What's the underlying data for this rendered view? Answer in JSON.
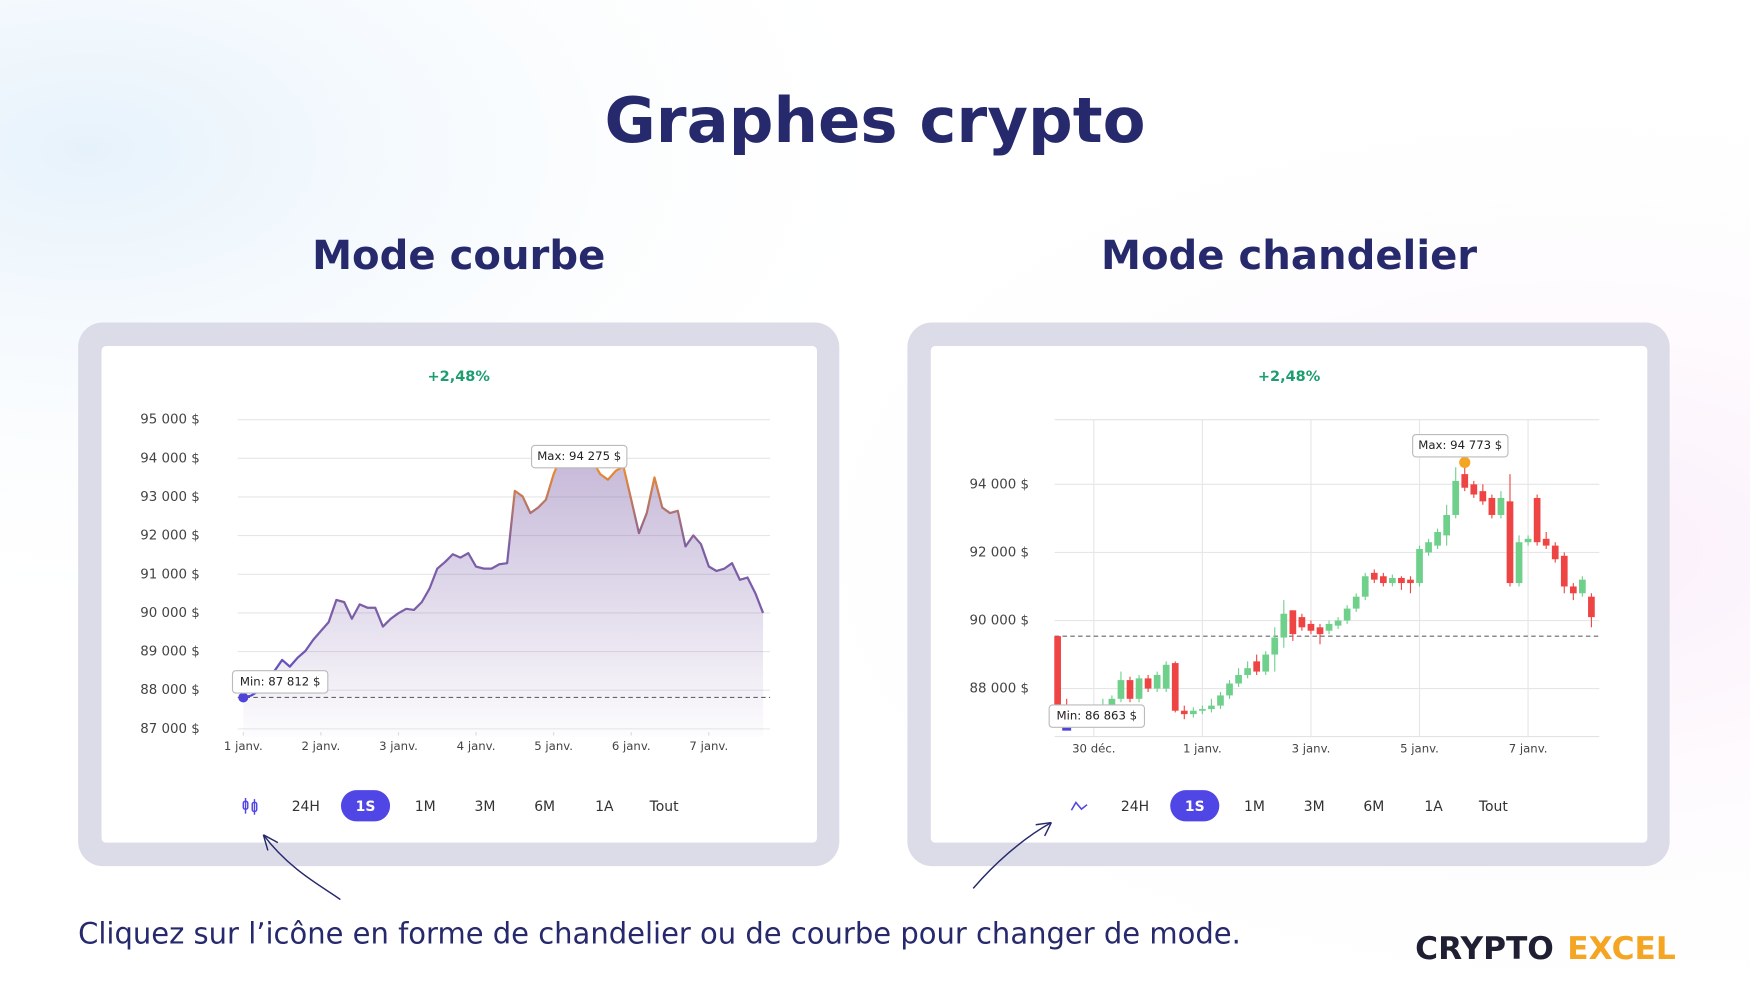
{
  "title": "Graphes crypto",
  "panels": [
    {
      "heading": "Mode courbe",
      "periods": [
        "24H",
        "1S",
        "1M",
        "3M",
        "6M",
        "1A",
        "Tout"
      ],
      "active_index": 1
    },
    {
      "heading": "Mode chandelier",
      "periods": [
        "24H",
        "1S",
        "1M",
        "3M",
        "6M",
        "1A",
        "Tout"
      ],
      "active_index": 1
    }
  ],
  "footer": "Cliquez sur l’icône en forme de chandelier ou de courbe pour changer de mode.",
  "logo": {
    "left": "CRYPTO",
    "right": "EXCEL"
  },
  "chart_data": [
    {
      "type": "line",
      "change": "+2,48%",
      "x": [
        0,
        0.1,
        0.2,
        0.3,
        0.4,
        0.5,
        0.6,
        0.7,
        0.8,
        0.9,
        1,
        1.1,
        1.2,
        1.3,
        1.4,
        1.5,
        1.6,
        1.7,
        1.8,
        1.9,
        2,
        2.1,
        2.2,
        2.3,
        2.4,
        2.5,
        2.6,
        2.7,
        2.8,
        2.9,
        3,
        3.1,
        3.2,
        3.3,
        3.4,
        3.5,
        3.6,
        3.7,
        3.8,
        3.9,
        4,
        4.1,
        4.2,
        4.3,
        4.4,
        4.5,
        4.6,
        4.7,
        4.8,
        4.9,
        5,
        5.1,
        5.2,
        5.3,
        5.4,
        5.5,
        5.6,
        5.7,
        5.8,
        5.9,
        6,
        6.1,
        6.2,
        6.3,
        6.4,
        6.5,
        6.6,
        6.7
      ],
      "xlim": [
        -0.072,
        6.79
      ],
      "xticks": [
        {
          "value": 0,
          "label": "1 janv."
        },
        {
          "value": 1,
          "label": "2 janv."
        },
        {
          "value": 2,
          "label": "3 janv."
        },
        {
          "value": 3,
          "label": "4 janv."
        },
        {
          "value": 4,
          "label": "5 janv."
        },
        {
          "value": 5,
          "label": "6 janv."
        },
        {
          "value": 6,
          "label": "7 janv."
        }
      ],
      "ylim": [
        86800,
        95000
      ],
      "yticks": [
        {
          "value": 87000,
          "label": "87 000 $"
        },
        {
          "value": 88000,
          "label": "88 000 $"
        },
        {
          "value": 89000,
          "label": "89 000 $"
        },
        {
          "value": 90000,
          "label": "90 000 $"
        },
        {
          "value": 91000,
          "label": "91 000 $"
        },
        {
          "value": 92000,
          "label": "92 000 $"
        },
        {
          "value": 93000,
          "label": "93 000 $"
        },
        {
          "value": 94000,
          "label": "94 000 $"
        },
        {
          "value": 95000,
          "label": "95 000 $"
        }
      ],
      "grid": true,
      "series": [
        {
          "colors": [
            "#f28c28",
            "#7b5ea7",
            "#4e45d8"
          ],
          "values": [
            87812,
            87862,
            87978,
            88180,
            88496,
            88784,
            88610,
            88840,
            89014,
            89302,
            89532,
            89762,
            90338,
            90280,
            89850,
            90222,
            90136,
            90136,
            89647,
            89850,
            89993,
            90107,
            90078,
            90280,
            90626,
            91144,
            91316,
            91518,
            91431,
            91546,
            91201,
            91144,
            91144,
            91259,
            91287,
            93158,
            93014,
            92582,
            92726,
            92928,
            93590,
            94080,
            94275,
            94252,
            94022,
            93935,
            93590,
            93446,
            93676,
            93791,
            92928,
            92064,
            92582,
            93503,
            92726,
            92582,
            92640,
            91719,
            92006,
            91777,
            91201,
            91086,
            91144,
            91287,
            90856,
            90914,
            90510,
            90000
          ]
        }
      ],
      "max_label": "Max: 94 275 $",
      "min_label": "Min: 87 812 $",
      "ref_line": 87812
    },
    {
      "type": "candlestick",
      "change": "+2,48%",
      "x": [
        -16,
        -12,
        -8,
        -4,
        0,
        4,
        8,
        12,
        16,
        20,
        24,
        28,
        32,
        36,
        40,
        44,
        48,
        52,
        56,
        60,
        64,
        68,
        72,
        76,
        80,
        84,
        88,
        92,
        96,
        100,
        104,
        108,
        112,
        116,
        120,
        124,
        128,
        132,
        136,
        140,
        144,
        148,
        152,
        156,
        160,
        164,
        168,
        172,
        176,
        180,
        184,
        188,
        192,
        196,
        200,
        204,
        208,
        212,
        216,
        220
      ],
      "xlim": [
        -17.3,
        223.5
      ],
      "xticks": [
        {
          "value": 0,
          "label": "30 déc."
        },
        {
          "value": 48,
          "label": "1 janv."
        },
        {
          "value": 96,
          "label": "3 janv."
        },
        {
          "value": 144,
          "label": "5 janv."
        },
        {
          "value": 192,
          "label": "7 janv."
        }
      ],
      "ylim": [
        86590,
        95900
      ],
      "yticks": [
        {
          "value": 88000,
          "label": "88 000 $"
        },
        {
          "value": 90000,
          "label": "90 000 $"
        },
        {
          "value": 92000,
          "label": "92 000 $"
        },
        {
          "value": 94000,
          "label": "94 000 $"
        }
      ],
      "grid": true,
      "up_color": "#6fd08c",
      "down_color": "#ef4444",
      "open": [
        89540,
        87500,
        87300,
        87250,
        87400,
        87250,
        87500,
        87700,
        88250,
        87700,
        88300,
        88000,
        88000,
        88750,
        87350,
        87250,
        87350,
        87400,
        87500,
        87800,
        88150,
        88400,
        88800,
        88500,
        89000,
        89500,
        90300,
        90100,
        89900,
        89800,
        89700,
        89850,
        90000,
        90350,
        90700,
        91400,
        91300,
        91100,
        91250,
        91200,
        91100,
        92000,
        92200,
        92500,
        93100,
        94300,
        94000,
        93800,
        93600,
        93100,
        93500,
        91100,
        92300,
        93600,
        92400,
        92200,
        91900,
        91000,
        90800,
        90700
      ],
      "high": [
        89540,
        87700,
        87400,
        87450,
        87500,
        87700,
        87800,
        88500,
        88350,
        88400,
        88400,
        88500,
        88800,
        88800,
        87500,
        87450,
        87500,
        87700,
        87900,
        88250,
        88600,
        88800,
        89000,
        89100,
        89800,
        90600,
        90300,
        90200,
        90000,
        89900,
        90000,
        90100,
        90450,
        90800,
        91400,
        91500,
        91400,
        91350,
        91300,
        91300,
        92200,
        92400,
        92700,
        93400,
        94500,
        94773,
        94100,
        94000,
        93700,
        93800,
        94300,
        92500,
        92500,
        93700,
        92600,
        92300,
        92000,
        91100,
        91300,
        90800
      ],
      "low": [
        87100,
        86863,
        87100,
        87150,
        87150,
        87150,
        87400,
        87600,
        87600,
        87600,
        87900,
        87900,
        87900,
        87300,
        87100,
        87150,
        87250,
        87300,
        87400,
        87700,
        88050,
        88300,
        88400,
        88400,
        88500,
        89200,
        89400,
        89700,
        89600,
        89300,
        89600,
        89750,
        89900,
        90250,
        90600,
        91100,
        91000,
        91000,
        90900,
        90800,
        91000,
        91900,
        92100,
        92200,
        93000,
        93800,
        93600,
        93400,
        93000,
        93000,
        91000,
        91000,
        92200,
        92200,
        92100,
        91700,
        90800,
        90600,
        90700,
        89800
      ],
      "close": [
        87100,
        87300,
        87250,
        87350,
        87250,
        87500,
        87700,
        88250,
        87700,
        88300,
        88000,
        88400,
        88700,
        87350,
        87250,
        87350,
        87400,
        87500,
        87800,
        88150,
        88400,
        88600,
        88500,
        89000,
        89500,
        90200,
        89600,
        89800,
        89700,
        89600,
        89900,
        90000,
        90350,
        90700,
        91300,
        91200,
        91100,
        91250,
        91100,
        91100,
        92100,
        92300,
        92600,
        93100,
        94100,
        93900,
        93700,
        93500,
        93100,
        93600,
        91100,
        92300,
        92400,
        92300,
        92200,
        91800,
        91000,
        90800,
        91200,
        90100
      ],
      "max_label": "Max: 94 773 $",
      "min_label": "Min: 86 863 $",
      "ref_line": 89540
    }
  ]
}
